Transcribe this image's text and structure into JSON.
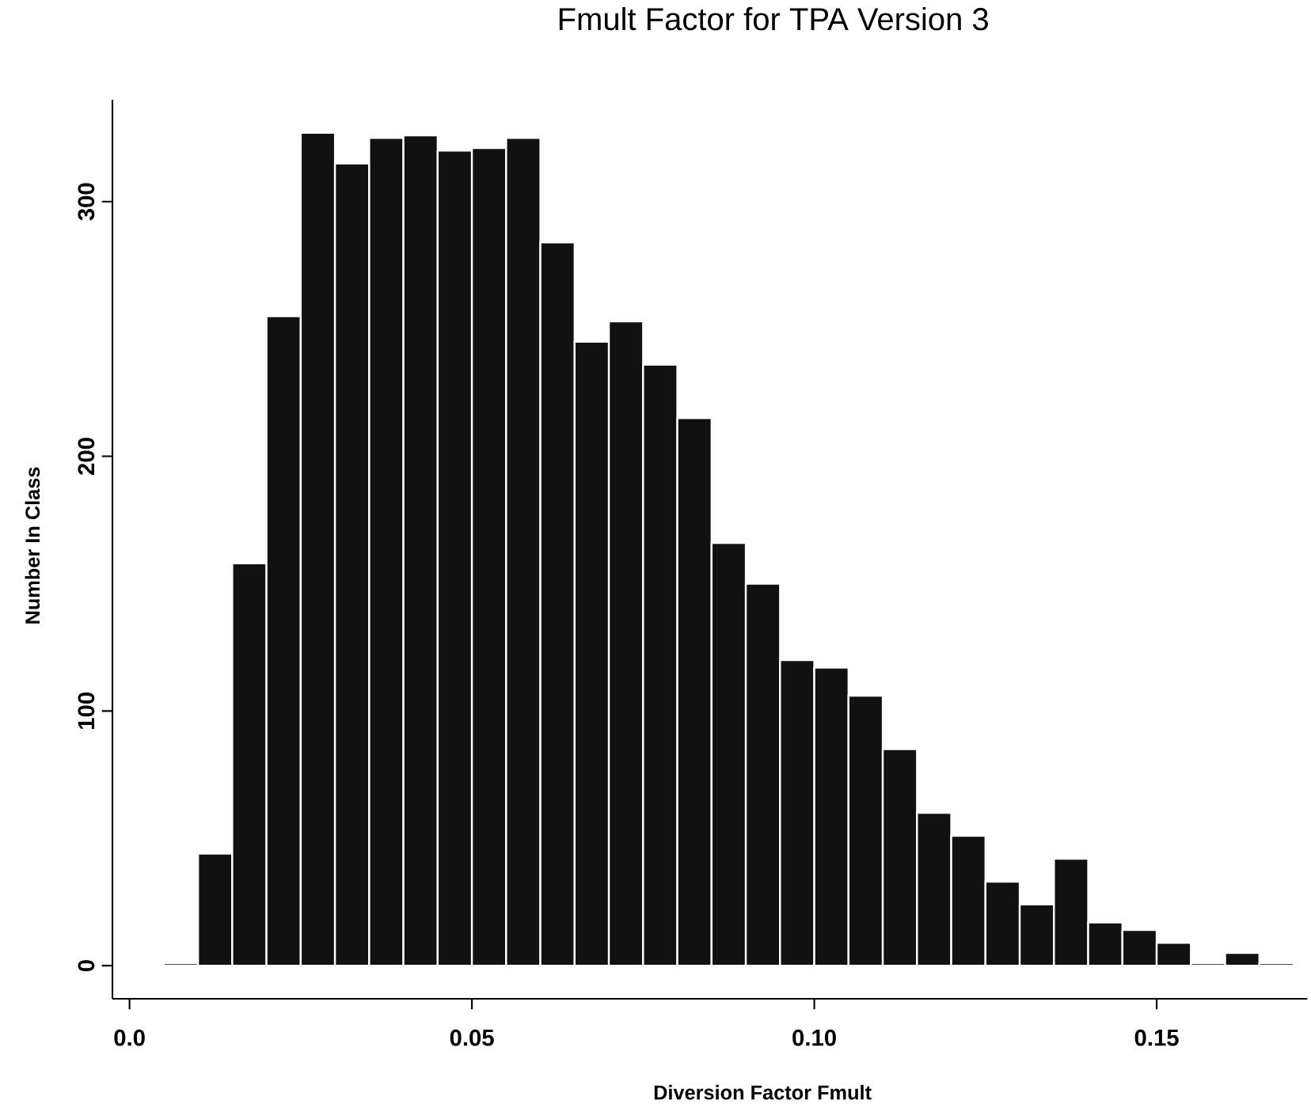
{
  "chart_data": {
    "type": "histogram",
    "title": "Fmult Factor for TPA Version 3",
    "xlabel": "Diversion Factor Fmult",
    "ylabel": "Number In Class",
    "bins": [
      0.005,
      0.01,
      0.015,
      0.02,
      0.025,
      0.03,
      0.035,
      0.04,
      0.045,
      0.05,
      0.055,
      0.06,
      0.065,
      0.07,
      0.075,
      0.08,
      0.085,
      0.09,
      0.095,
      0.1,
      0.105,
      0.11,
      0.115,
      0.12,
      0.125,
      0.13,
      0.135,
      0.14,
      0.145,
      0.15,
      0.155,
      0.16,
      0.165,
      0.17
    ],
    "values": [
      1,
      44,
      158,
      255,
      327,
      315,
      325,
      326,
      320,
      321,
      325,
      284,
      245,
      253,
      236,
      215,
      166,
      150,
      120,
      117,
      106,
      85,
      60,
      51,
      33,
      24,
      42,
      17,
      14,
      9,
      1,
      5,
      1
    ],
    "color": "#111111",
    "xlim": [
      -0.0025,
      0.172
    ],
    "ylim": [
      -13,
      340
    ],
    "xticks": [
      {
        "value": 0,
        "label": "0.0"
      },
      0.05,
      {
        "value": 0.1,
        "label": "0.10"
      },
      0.15
    ],
    "yticks": [
      0,
      100,
      200,
      300
    ]
  }
}
